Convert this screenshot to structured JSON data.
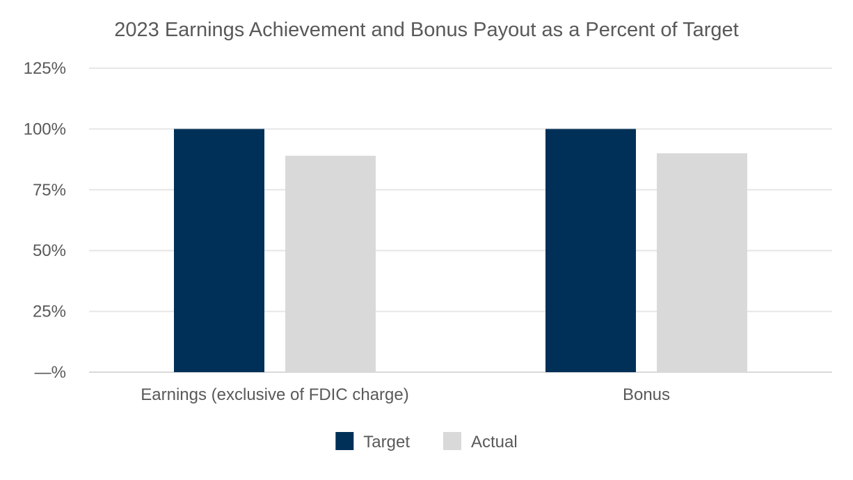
{
  "chart_data": {
    "type": "bar",
    "title": "2023 Earnings Achievement and Bonus Payout as a Percent of Target",
    "xlabel": "",
    "ylabel": "",
    "categories": [
      "Earnings (exclusive of FDIC charge)",
      "Bonus"
    ],
    "series": [
      {
        "name": "Target",
        "values": [
          100,
          100
        ],
        "color": "#003057"
      },
      {
        "name": "Actual",
        "values": [
          89,
          90
        ],
        "color": "#d9d9d9"
      }
    ],
    "ylim": [
      0,
      125
    ],
    "yticks": [
      0,
      25,
      50,
      75,
      100,
      125
    ],
    "ytick_labels": [
      "—%",
      "25%",
      "50%",
      "75%",
      "100%",
      "125%"
    ],
    "grid": true,
    "legend_position": "bottom"
  }
}
